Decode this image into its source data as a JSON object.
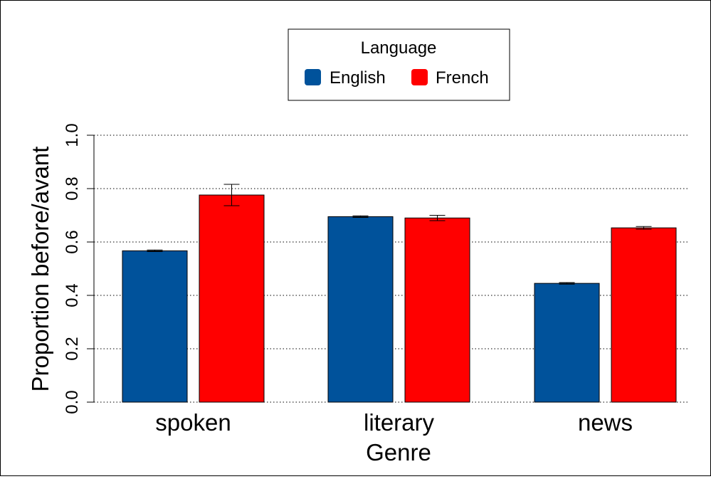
{
  "chart_data": {
    "type": "bar",
    "xlabel": "Genre",
    "ylabel": "Proportion before/avant",
    "ylim": [
      0,
      1
    ],
    "yticks": [
      "0.0",
      "0.2",
      "0.4",
      "0.6",
      "0.8",
      "1.0"
    ],
    "grid": "horizontal dotted",
    "categories": [
      "spoken",
      "literary",
      "news"
    ],
    "legend": {
      "title": "Language",
      "position": "top-center"
    },
    "series": [
      {
        "name": "English",
        "color": "#00529B",
        "values": [
          0.567,
          0.695,
          0.445
        ],
        "err_low": [
          0.564,
          0.692,
          0.442
        ],
        "err_high": [
          0.57,
          0.698,
          0.448
        ]
      },
      {
        "name": "French",
        "color": "#FF0000",
        "values": [
          0.776,
          0.69,
          0.653
        ],
        "err_low": [
          0.736,
          0.68,
          0.648
        ],
        "err_high": [
          0.816,
          0.7,
          0.658
        ]
      }
    ]
  }
}
